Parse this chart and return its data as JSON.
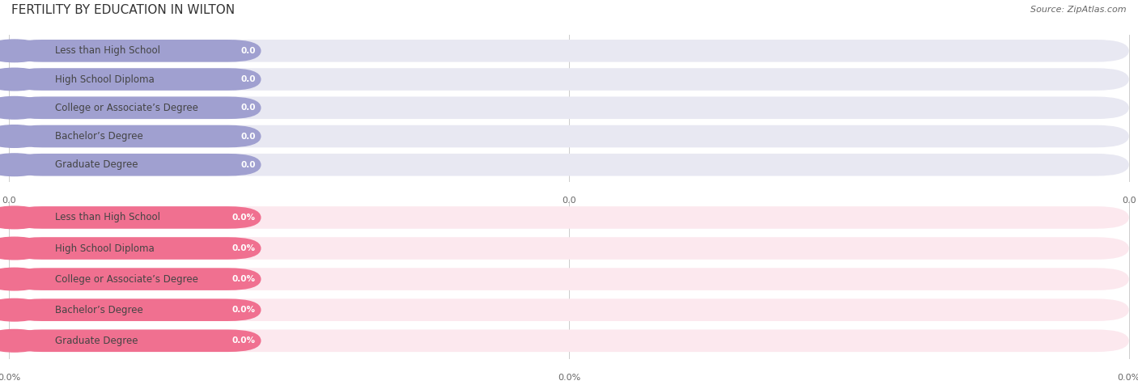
{
  "title": "FERTILITY BY EDUCATION IN WILTON",
  "source": "Source: ZipAtlas.com",
  "categories": [
    "Less than High School",
    "High School Diploma",
    "College or Associate’s Degree",
    "Bachelor’s Degree",
    "Graduate Degree"
  ],
  "values_top": [
    0.0,
    0.0,
    0.0,
    0.0,
    0.0
  ],
  "values_bottom": [
    0.0,
    0.0,
    0.0,
    0.0,
    0.0
  ],
  "bar_color_top": "#a0a0d0",
  "bar_color_top_bg": "#e8e8f2",
  "bar_color_bottom": "#f07090",
  "bar_color_bottom_bg": "#fce8ee",
  "value_label_top": [
    "0.0",
    "0.0",
    "0.0",
    "0.0",
    "0.0"
  ],
  "value_label_bottom": [
    "0.0%",
    "0.0%",
    "0.0%",
    "0.0%",
    "0.0%"
  ],
  "xtick_labels_top": [
    "0.0",
    "0.0",
    "0.0"
  ],
  "xtick_labels_bottom": [
    "0.0%",
    "0.0%",
    "0.0%"
  ],
  "background_color": "#ffffff",
  "title_fontsize": 11,
  "label_fontsize": 8.5,
  "value_fontsize": 7.5,
  "tick_fontsize": 8,
  "source_fontsize": 8
}
